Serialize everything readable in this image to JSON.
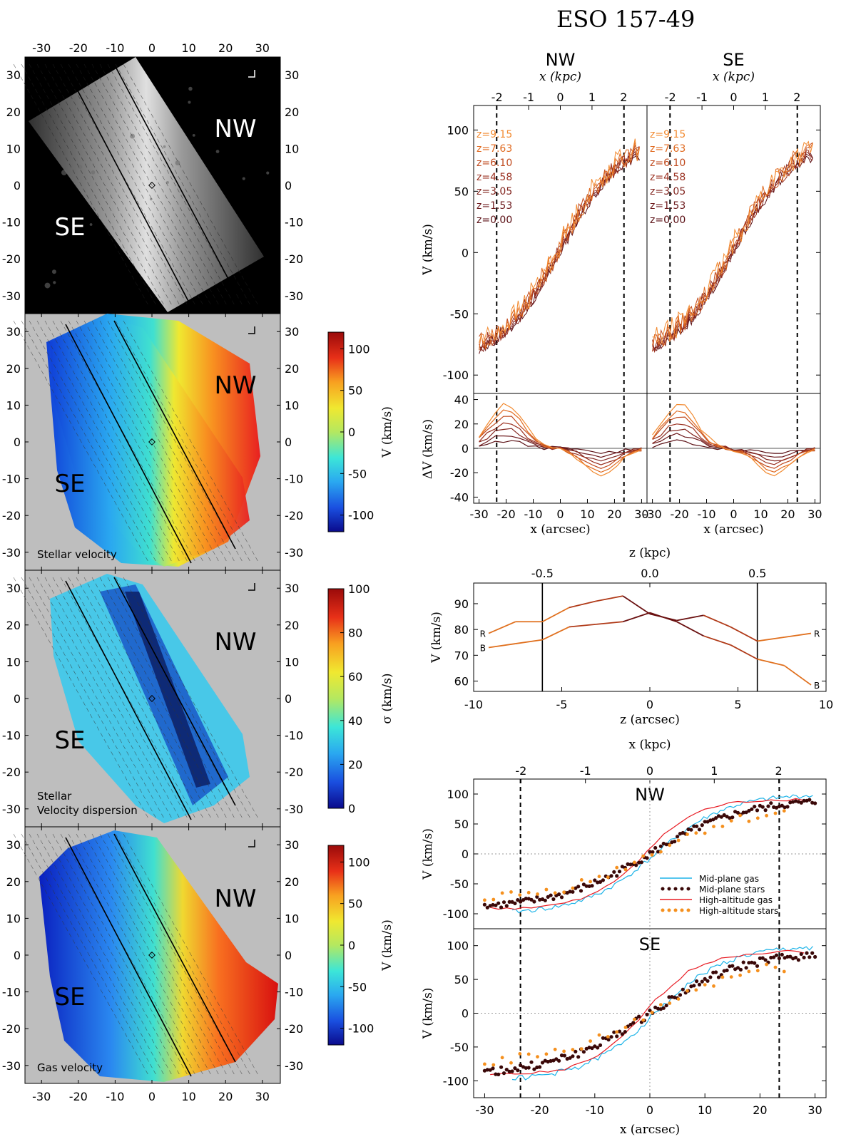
{
  "figure_title": "ESO 157-49",
  "colors": {
    "z_lines": [
      "#5a0f14",
      "#6d1a1d",
      "#82241e",
      "#9a3020",
      "#c04a1e",
      "#e06a20",
      "#f28a30"
    ],
    "gas_mid": "#1eb4e8",
    "stars_mid": "#3a0808",
    "gas_high": "#e81c24",
    "stars_high": "#f5901e",
    "panel_bg": "#bebebe"
  },
  "chart_data": [
    {
      "id": "intensity_map",
      "type": "heatmap",
      "label_nw": "NW",
      "label_se": "SE",
      "caption": "",
      "x_ticks": [
        "-30",
        "-20",
        "-10",
        "0",
        "10",
        "20",
        "30"
      ],
      "y_ticks": [
        "30",
        "20",
        "10",
        "0",
        "-10",
        "-20",
        "-30"
      ],
      "xlim": [
        -35,
        35
      ],
      "ylim": [
        -35,
        35
      ]
    },
    {
      "id": "stellar_velocity_map",
      "type": "heatmap",
      "label_nw": "NW",
      "label_se": "SE",
      "caption": "Stellar velocity",
      "colorbar_label": "V (km/s)",
      "colorbar_ticks": [
        "100",
        "50",
        "0",
        "-50",
        "-100"
      ],
      "colorbar_range": [
        -120,
        120
      ]
    },
    {
      "id": "stellar_dispersion_map",
      "type": "heatmap",
      "label_nw": "NW",
      "label_se": "SE",
      "caption_line1": "Stellar",
      "caption_line2": "Velocity dispersion",
      "colorbar_label": "σ (km/s)",
      "colorbar_ticks": [
        "100",
        "80",
        "60",
        "40",
        "20",
        "0"
      ],
      "colorbar_range": [
        0,
        100
      ]
    },
    {
      "id": "gas_velocity_map",
      "type": "heatmap",
      "label_nw": "NW",
      "label_se": "SE",
      "caption": "Gas velocity",
      "colorbar_label": "V (km/s)",
      "colorbar_ticks": [
        "100",
        "50",
        "0",
        "-50",
        "-100"
      ],
      "colorbar_range": [
        -120,
        120
      ],
      "x_ticks": [
        "-30",
        "-20",
        "-10",
        "0",
        "10",
        "20",
        "30"
      ]
    },
    {
      "id": "rotation_curves_by_height",
      "type": "line",
      "panels": [
        "NW",
        "SE"
      ],
      "top_axis_label": "x (kpc)",
      "top_ticks": [
        "-2",
        "-1",
        "0",
        "1",
        "2"
      ],
      "xlabel": "x (arcsec)",
      "x_ticks": [
        "-30",
        "-20",
        "-10",
        "0",
        "10",
        "20",
        "30"
      ],
      "ylabel": "V (km/s)",
      "ylim": [
        -115,
        120
      ],
      "y_ticks": [
        "100",
        "50",
        "0",
        "-50",
        "-100"
      ],
      "ylabel_residual": "ΔV (km/s)",
      "ylim_residual": [
        -45,
        45
      ],
      "y_ticks_residual": [
        "40",
        "20",
        "0",
        "-20",
        "-40"
      ],
      "z_labels": [
        "z=9.15",
        "z=7.63",
        "z=6.10",
        "z=4.58",
        "z=3.05",
        "z=1.53",
        "z=0.00"
      ],
      "xlim": [
        -32,
        32
      ],
      "dashed_x": [
        -23.5,
        23.5
      ]
    },
    {
      "id": "velocity_vs_height",
      "type": "line",
      "top_axis_label": "z (kpc)",
      "top_ticks": [
        "-0.5",
        "0.0",
        "0.5"
      ],
      "xlabel": "z (arcsec)",
      "x_ticks": [
        "-10",
        "-5",
        "0",
        "5",
        "10"
      ],
      "ylabel": "V (km/s)",
      "y_ticks": [
        "90",
        "80",
        "70",
        "60"
      ],
      "xlim": [
        -10,
        10
      ],
      "ylim": [
        56,
        98
      ],
      "vlines": [
        -6.1,
        6.1
      ],
      "series": [
        {
          "name": "R",
          "x": [
            -9.15,
            -7.63,
            -6.1,
            -4.58,
            -3.05,
            -1.53,
            0,
            1.53,
            3.05,
            4.58,
            6.1,
            7.63,
            9.15
          ],
          "values": [
            78.5,
            83,
            83,
            88.5,
            91,
            93,
            86,
            83.5,
            85.5,
            81,
            75.5,
            77,
            78.5
          ]
        },
        {
          "name": "B",
          "x": [
            -9.15,
            -7.63,
            -6.1,
            -4.58,
            -3.05,
            -1.53,
            0,
            1.53,
            3.05,
            4.58,
            6.1,
            7.63,
            9.15
          ],
          "values": [
            73,
            74.5,
            76,
            81,
            82,
            83,
            86.5,
            83,
            77.5,
            74,
            68.5,
            66,
            58.5
          ]
        }
      ]
    },
    {
      "id": "gas_vs_stars",
      "type": "line",
      "panels": [
        "NW",
        "SE"
      ],
      "top_axis_label": "x (kpc)",
      "top_ticks": [
        "-2",
        "-1",
        "0",
        "1",
        "2"
      ],
      "xlabel": "x (arcsec)",
      "x_ticks": [
        "-30",
        "-20",
        "-10",
        "0",
        "10",
        "20",
        "30"
      ],
      "ylabel": "V (km/s)",
      "y_ticks": [
        "100",
        "50",
        "0",
        "-50",
        "-100"
      ],
      "xlim": [
        -32,
        32
      ],
      "ylim": [
        -125,
        125
      ],
      "dashed_x": [
        -23.5,
        23.5
      ],
      "legend": [
        "Mid-plane gas",
        "Mid-plane stars",
        "High-altitude gas",
        "High-altitude stars"
      ]
    }
  ]
}
